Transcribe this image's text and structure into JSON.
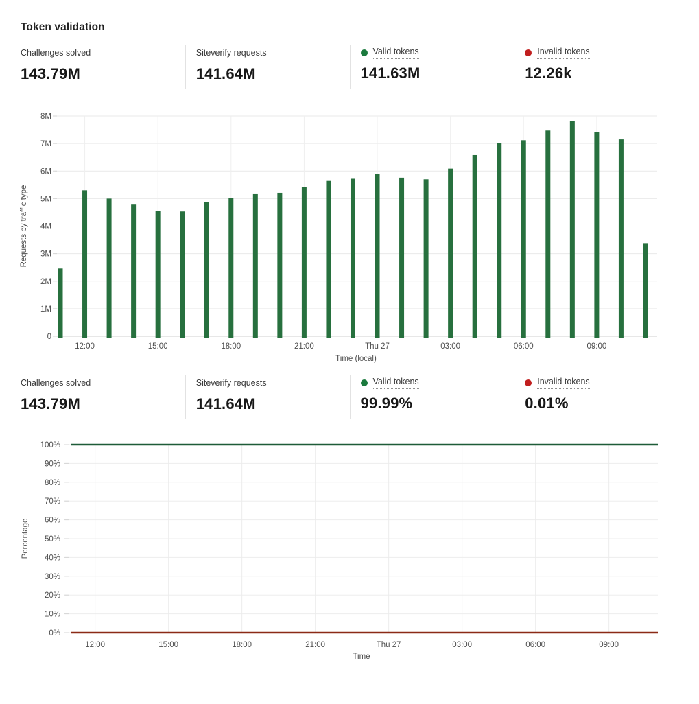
{
  "panel": {
    "title": "Token validation"
  },
  "colors": {
    "valid_green": "#1b7a3e",
    "invalid_red": "#c11e1e",
    "bar_green": "#27703e",
    "line_green": "#1e5c38",
    "line_red": "#8b2a16"
  },
  "stats_top": [
    {
      "label": "Challenges solved",
      "value": "143.79M"
    },
    {
      "label": "Siteverify requests",
      "value": "141.64M"
    },
    {
      "label": "Valid tokens",
      "value": "141.63M",
      "dot_color": "#1b7a3e"
    },
    {
      "label": "Invalid tokens",
      "value": "12.26k",
      "dot_color": "#c11e1e"
    }
  ],
  "stats_bottom": [
    {
      "label": "Challenges solved",
      "value": "143.79M"
    },
    {
      "label": "Siteverify requests",
      "value": "141.64M"
    },
    {
      "label": "Valid tokens",
      "value": "99.99%",
      "dot_color": "#1b7a3e"
    },
    {
      "label": "Invalid tokens",
      "value": "0.01%",
      "dot_color": "#c11e1e"
    }
  ],
  "chart_data": [
    {
      "type": "bar",
      "ylabel": "Requests by traffic type",
      "xlabel": "Time (local)",
      "unit": "M",
      "ylim": [
        0,
        8
      ],
      "ytick_labels": [
        "0",
        "1M",
        "2M",
        "3M",
        "4M",
        "5M",
        "6M",
        "7M",
        "8M"
      ],
      "categories": [
        "11:00",
        "12:00",
        "13:00",
        "14:00",
        "15:00",
        "16:00",
        "17:00",
        "18:00",
        "19:00",
        "20:00",
        "21:00",
        "22:00",
        "23:00",
        "Thu 27",
        "01:00",
        "02:00",
        "03:00",
        "04:00",
        "05:00",
        "06:00",
        "07:00",
        "08:00",
        "09:00",
        "10:00",
        "11:00"
      ],
      "xtick_indices": [
        1,
        4,
        7,
        10,
        13,
        16,
        19,
        22
      ],
      "xtick_labels": [
        "12:00",
        "15:00",
        "18:00",
        "21:00",
        "Thu 27",
        "03:00",
        "06:00",
        "09:00"
      ],
      "grid": true,
      "series": [
        {
          "name": "Valid tokens",
          "color": "#27703e",
          "values": [
            2.46,
            5.3,
            5.0,
            4.78,
            4.55,
            4.53,
            4.88,
            5.02,
            5.16,
            5.21,
            5.41,
            5.64,
            5.72,
            5.9,
            5.76,
            5.7,
            6.09,
            6.58,
            7.02,
            7.12,
            7.47,
            7.82,
            7.42,
            7.15,
            3.38
          ]
        }
      ]
    },
    {
      "type": "line",
      "ylabel": "Percentage",
      "xlabel": "Time",
      "ylim": [
        0,
        100
      ],
      "ytick_labels": [
        "0%",
        "10%",
        "20%",
        "30%",
        "40%",
        "50%",
        "60%",
        "70%",
        "80%",
        "90%",
        "100%"
      ],
      "categories": [
        "11:00",
        "12:00",
        "13:00",
        "14:00",
        "15:00",
        "16:00",
        "17:00",
        "18:00",
        "19:00",
        "20:00",
        "21:00",
        "22:00",
        "23:00",
        "Thu 27",
        "01:00",
        "02:00",
        "03:00",
        "04:00",
        "05:00",
        "06:00",
        "07:00",
        "08:00",
        "09:00",
        "10:00",
        "11:00"
      ],
      "xtick_indices": [
        1,
        4,
        7,
        10,
        13,
        16,
        19,
        22
      ],
      "xtick_labels": [
        "12:00",
        "15:00",
        "18:00",
        "21:00",
        "Thu 27",
        "03:00",
        "06:00",
        "09:00"
      ],
      "grid": true,
      "series": [
        {
          "name": "Valid tokens",
          "color": "#1e5c38",
          "values": [
            99.99,
            99.99,
            99.99,
            99.99,
            99.99,
            99.99,
            99.99,
            99.99,
            99.99,
            99.99,
            99.99,
            99.99,
            99.99,
            99.99,
            99.99,
            99.99,
            99.99,
            99.99,
            99.99,
            99.99,
            99.99,
            99.99,
            99.99,
            99.99,
            99.99
          ]
        },
        {
          "name": "Invalid tokens",
          "color": "#8b2a16",
          "values": [
            0.01,
            0.01,
            0.01,
            0.01,
            0.01,
            0.01,
            0.01,
            0.01,
            0.01,
            0.01,
            0.01,
            0.01,
            0.01,
            0.01,
            0.01,
            0.01,
            0.01,
            0.01,
            0.01,
            0.01,
            0.01,
            0.01,
            0.01,
            0.01,
            0.01
          ]
        }
      ]
    }
  ]
}
